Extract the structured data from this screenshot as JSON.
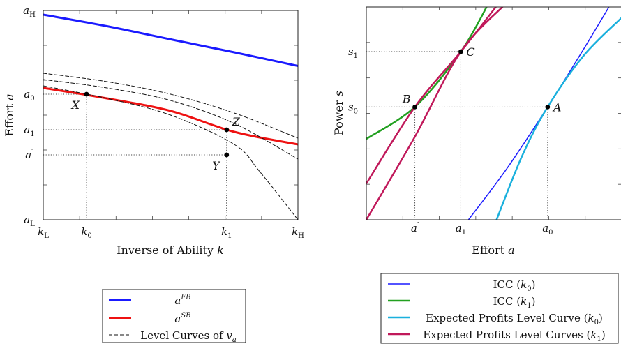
{
  "chart_data": [
    {
      "type": "line",
      "xlabel": "Inverse of Ability",
      "xlabel_var": "k",
      "ylabel": "Effort",
      "ylabel_var": "a",
      "ylim": [
        0,
        1
      ],
      "xlim": [
        0,
        1
      ],
      "x_ticks": [
        {
          "x": 0.0,
          "label": "k",
          "sub": "L"
        },
        {
          "x": 0.17,
          "label": "k",
          "sub": "0"
        },
        {
          "x": 0.72,
          "label": "k",
          "sub": "1"
        },
        {
          "x": 1.0,
          "label": "k",
          "sub": "H"
        }
      ],
      "y_ticks": [
        {
          "y": 1.0,
          "label": "a",
          "sub": "H",
          "sup": ""
        },
        {
          "y": 0.6,
          "label": "a",
          "sub": "0",
          "sup": ""
        },
        {
          "y": 0.43,
          "label": "a",
          "sub": "1",
          "sup": ""
        },
        {
          "y": 0.31,
          "label": "a",
          "sub": "",
          "sup": "′"
        },
        {
          "y": 0.0,
          "label": "a",
          "sub": "L",
          "sup": ""
        }
      ],
      "series": [
        {
          "name": "a",
          "name_sup": "FB",
          "color": "#1a1aff",
          "width": 3,
          "x": [
            0.0,
            0.25,
            0.5,
            0.75,
            1.0
          ],
          "y": [
            0.98,
            0.925,
            0.862,
            0.8,
            0.735
          ]
        },
        {
          "name": "a",
          "name_sup": "SB",
          "color": "#ee1111",
          "width": 3,
          "x": [
            0.0,
            0.25,
            0.5,
            0.75,
            1.0
          ],
          "y": [
            0.63,
            0.58,
            0.52,
            0.42,
            0.36
          ]
        },
        {
          "name": "Level Curves of",
          "name_var": "v",
          "name_sub": "a",
          "dashed": true,
          "color": "#111111",
          "width": 1,
          "x": [
            0.0,
            0.25,
            0.5,
            0.75,
            1.0
          ],
          "y": [
            0.7,
            0.66,
            0.6,
            0.51,
            0.39
          ]
        },
        {
          "dashed": true,
          "color": "#111111",
          "width": 1,
          "x": [
            0.0,
            0.25,
            0.5,
            0.75,
            1.0
          ],
          "y": [
            0.67,
            0.63,
            0.57,
            0.46,
            0.29
          ]
        },
        {
          "dashed": true,
          "color": "#111111",
          "width": 1,
          "x": [
            0.0,
            0.25,
            0.5,
            0.75,
            0.85,
            1.0
          ],
          "y": [
            0.64,
            0.58,
            0.5,
            0.36,
            0.23,
            0.0
          ]
        }
      ],
      "points": [
        {
          "label": "X",
          "x": 0.17,
          "y": 0.6,
          "anchor": "below-left"
        },
        {
          "label": "Z",
          "x": 0.72,
          "y": 0.43,
          "anchor": "above-right"
        },
        {
          "label": "Y",
          "x": 0.72,
          "y": 0.31,
          "anchor": "below-left"
        }
      ],
      "legend": "below",
      "grid": false
    },
    {
      "type": "line",
      "xlabel": "Effort",
      "xlabel_var": "a",
      "ylabel": "Power",
      "ylabel_var": "s",
      "xlim": [
        0,
        1
      ],
      "ylim": [
        0,
        1
      ],
      "x_ticks": [
        {
          "x": 0.19,
          "label": "a",
          "sub": "",
          "sup": "′"
        },
        {
          "x": 0.37,
          "label": "a",
          "sub": "1",
          "sup": ""
        },
        {
          "x": 0.71,
          "label": "a",
          "sub": "0",
          "sup": ""
        }
      ],
      "y_ticks": [
        {
          "y": 0.79,
          "label": "s",
          "sub": "1"
        },
        {
          "y": 0.53,
          "label": "s",
          "sub": "0"
        }
      ],
      "series": [
        {
          "name": "ICC",
          "arg": "k",
          "arg_sub": "0",
          "color": "#1a1aff",
          "width": 1.5,
          "x": [
            0.4,
            0.55,
            0.71,
            0.85,
            0.96
          ],
          "y": [
            0.0,
            0.24,
            0.53,
            0.8,
            1.02
          ]
        },
        {
          "name": "ICC",
          "arg": "k",
          "arg_sub": "1",
          "color": "#22a020",
          "width": 2.5,
          "x": [
            0.0,
            0.19,
            0.37,
            0.48
          ],
          "y": [
            0.38,
            0.53,
            0.79,
            1.02
          ]
        },
        {
          "name": "Expected Profits Level Curve",
          "arg": "k",
          "arg_sub": "0",
          "color": "#1ab0dd",
          "width": 2.5,
          "x": [
            0.51,
            0.61,
            0.71,
            0.85,
            1.0
          ],
          "y": [
            0.0,
            0.3,
            0.53,
            0.77,
            0.95
          ]
        },
        {
          "name": "Expected Profits Level Curves",
          "arg": "k",
          "arg_sub": "1",
          "color": "#c0185a",
          "width": 2.5,
          "x": [
            0.0,
            0.19,
            0.37,
            0.52
          ],
          "y": [
            0.17,
            0.53,
            0.79,
            1.02
          ]
        },
        {
          "color": "#c0185a",
          "width": 2.5,
          "x": [
            0.0,
            0.19,
            0.37,
            0.55
          ],
          "y": [
            0.0,
            0.39,
            0.79,
            1.02
          ]
        }
      ],
      "points": [
        {
          "label": "B",
          "x": 0.19,
          "y": 0.53,
          "anchor": "above-left"
        },
        {
          "label": "C",
          "x": 0.37,
          "y": 0.79,
          "anchor": "right"
        },
        {
          "label": "A",
          "x": 0.71,
          "y": 0.53,
          "anchor": "right"
        }
      ],
      "legend": "below",
      "grid": false
    }
  ]
}
